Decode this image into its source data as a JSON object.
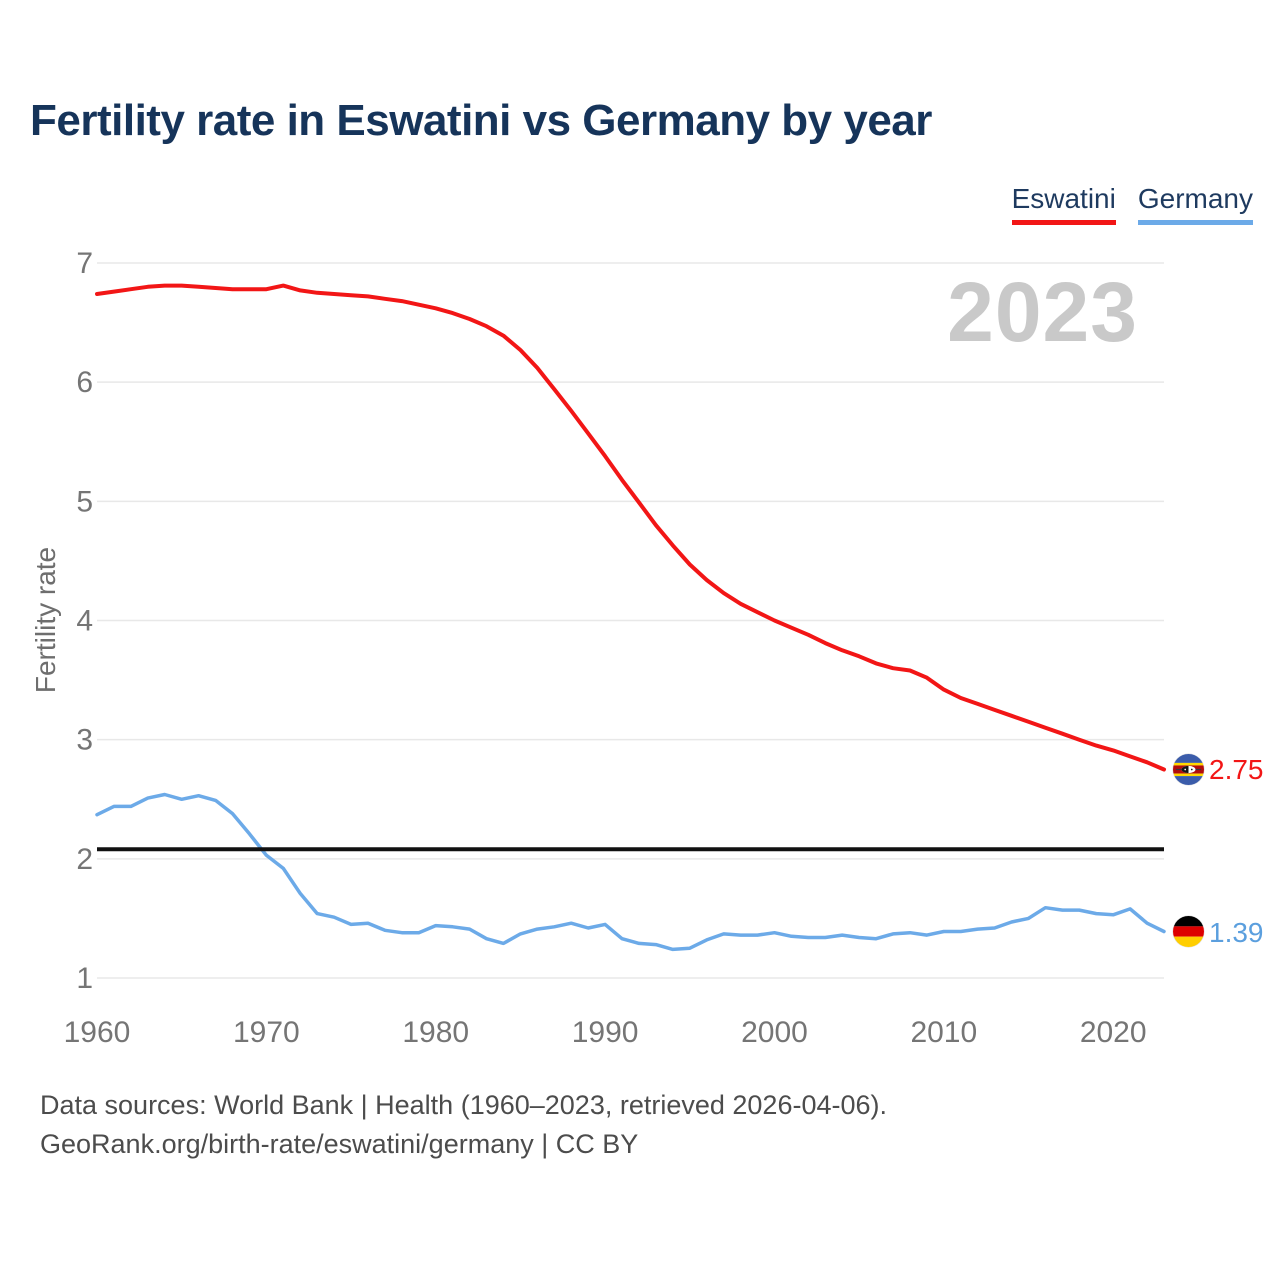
{
  "title": "Fertility rate in Eswatini vs Germany by year",
  "watermark": "2023",
  "legend": [
    {
      "label": "Eswatini",
      "color": "#f21616"
    },
    {
      "label": "Germany",
      "color": "#6caae8"
    }
  ],
  "footer": {
    "line1": "Data sources: World Bank | Health (1960–2023, retrieved 2026-04-06).",
    "line2": "GeoRank.org/birth-rate/eswatini/germany | CC BY"
  },
  "chart_data": {
    "type": "line",
    "title": "Fertility rate in Eswatini vs Germany by year",
    "xlabel": "",
    "ylabel": "Fertility rate",
    "xlim": [
      1960,
      2023
    ],
    "ylim": [
      1,
      7
    ],
    "xticks": [
      1960,
      1970,
      1980,
      1990,
      2000,
      2010,
      2020
    ],
    "yticks": [
      1,
      2,
      3,
      4,
      5,
      6,
      7
    ],
    "grid": "horizontal-only",
    "grid_color": "#e8e8e8",
    "tick_color": "#757575",
    "legend_position": "top-right",
    "reference_line": {
      "value": 2.08,
      "color": "#111111"
    },
    "x": [
      1960,
      1961,
      1962,
      1963,
      1964,
      1965,
      1966,
      1967,
      1968,
      1969,
      1970,
      1971,
      1972,
      1973,
      1974,
      1975,
      1976,
      1977,
      1978,
      1979,
      1980,
      1981,
      1982,
      1983,
      1984,
      1985,
      1986,
      1987,
      1988,
      1989,
      1990,
      1991,
      1992,
      1993,
      1994,
      1995,
      1996,
      1997,
      1998,
      1999,
      2000,
      2001,
      2002,
      2003,
      2004,
      2005,
      2006,
      2007,
      2008,
      2009,
      2010,
      2011,
      2012,
      2013,
      2014,
      2015,
      2016,
      2017,
      2018,
      2019,
      2020,
      2021,
      2022,
      2023
    ],
    "series": [
      {
        "name": "Eswatini",
        "color": "#f21616",
        "end_label": "2.75",
        "values": [
          6.74,
          6.76,
          6.78,
          6.8,
          6.81,
          6.81,
          6.8,
          6.79,
          6.78,
          6.78,
          6.78,
          6.81,
          6.77,
          6.75,
          6.74,
          6.73,
          6.72,
          6.7,
          6.68,
          6.65,
          6.62,
          6.58,
          6.53,
          6.47,
          6.39,
          6.27,
          6.12,
          5.94,
          5.76,
          5.57,
          5.38,
          5.18,
          4.99,
          4.8,
          4.63,
          4.47,
          4.34,
          4.23,
          4.14,
          4.07,
          4.0,
          3.94,
          3.88,
          3.81,
          3.75,
          3.7,
          3.64,
          3.6,
          3.58,
          3.52,
          3.42,
          3.35,
          3.3,
          3.25,
          3.2,
          3.15,
          3.1,
          3.05,
          3.0,
          2.95,
          2.91,
          2.86,
          2.81,
          2.75
        ]
      },
      {
        "name": "Germany",
        "color": "#6caae8",
        "end_label": "1.39",
        "values": [
          2.37,
          2.44,
          2.44,
          2.51,
          2.54,
          2.5,
          2.53,
          2.49,
          2.38,
          2.21,
          2.03,
          1.92,
          1.71,
          1.54,
          1.51,
          1.45,
          1.46,
          1.4,
          1.38,
          1.38,
          1.44,
          1.43,
          1.41,
          1.33,
          1.29,
          1.37,
          1.41,
          1.43,
          1.46,
          1.42,
          1.45,
          1.33,
          1.29,
          1.28,
          1.24,
          1.25,
          1.32,
          1.37,
          1.36,
          1.36,
          1.38,
          1.35,
          1.34,
          1.34,
          1.36,
          1.34,
          1.33,
          1.37,
          1.38,
          1.36,
          1.39,
          1.39,
          1.41,
          1.42,
          1.47,
          1.5,
          1.59,
          1.57,
          1.57,
          1.54,
          1.53,
          1.58,
          1.46,
          1.39
        ]
      }
    ]
  }
}
